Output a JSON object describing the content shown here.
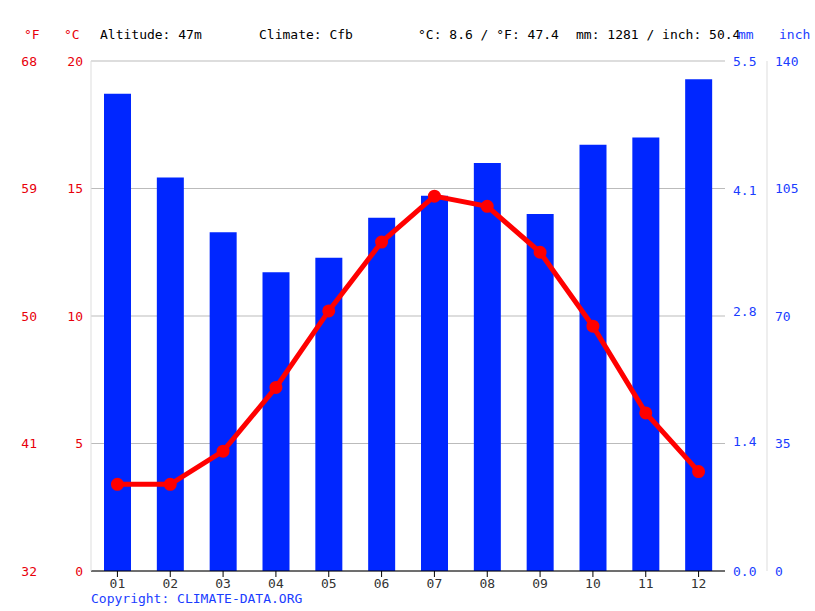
{
  "chart_data": {
    "type": "bar",
    "categories": [
      "01",
      "02",
      "03",
      "04",
      "05",
      "06",
      "07",
      "08",
      "09",
      "10",
      "11",
      "12"
    ],
    "series": [
      {
        "type": "bar",
        "color": "#0026ff",
        "axis": "y2",
        "values": [
          131,
          108,
          93,
          82,
          86,
          97,
          103,
          112,
          98,
          117,
          119,
          135
        ]
      },
      {
        "type": "line",
        "color": "#ff0000",
        "marker": "circle",
        "values": [
          3.4,
          3.4,
          4.7,
          7.2,
          10.2,
          12.9,
          14.7,
          14.3,
          12.5,
          9.6,
          6.2,
          3.9
        ]
      }
    ],
    "y_label": "°C",
    "ylim": [
      0,
      20
    ],
    "yticks": [
      0,
      5,
      10,
      15,
      20
    ],
    "y_alt_label": "°F",
    "y_alt_lim": [
      32,
      68
    ],
    "y_alt_ticks": [
      32,
      41,
      50,
      59,
      68
    ],
    "y2_label": "mm",
    "y2lim": [
      0,
      140
    ],
    "y2ticks": [
      0,
      35,
      70,
      105,
      140
    ],
    "y2_alt_label": "inch",
    "y2_alt_lim": [
      0,
      5.5
    ],
    "y2_alt_ticks": [
      {
        "value": 0,
        "label": "0.0"
      },
      1.4,
      2.8,
      4.1,
      5.5
    ],
    "annotations": [
      "Altitude: 47m",
      "Climate: Cfb",
      "°C: 8.6 / °F: 47.4",
      "mm: 1281 / inch: 50.4"
    ],
    "source": "Copyright: CLIMATE-DATA.ORG",
    "grid": true
  }
}
